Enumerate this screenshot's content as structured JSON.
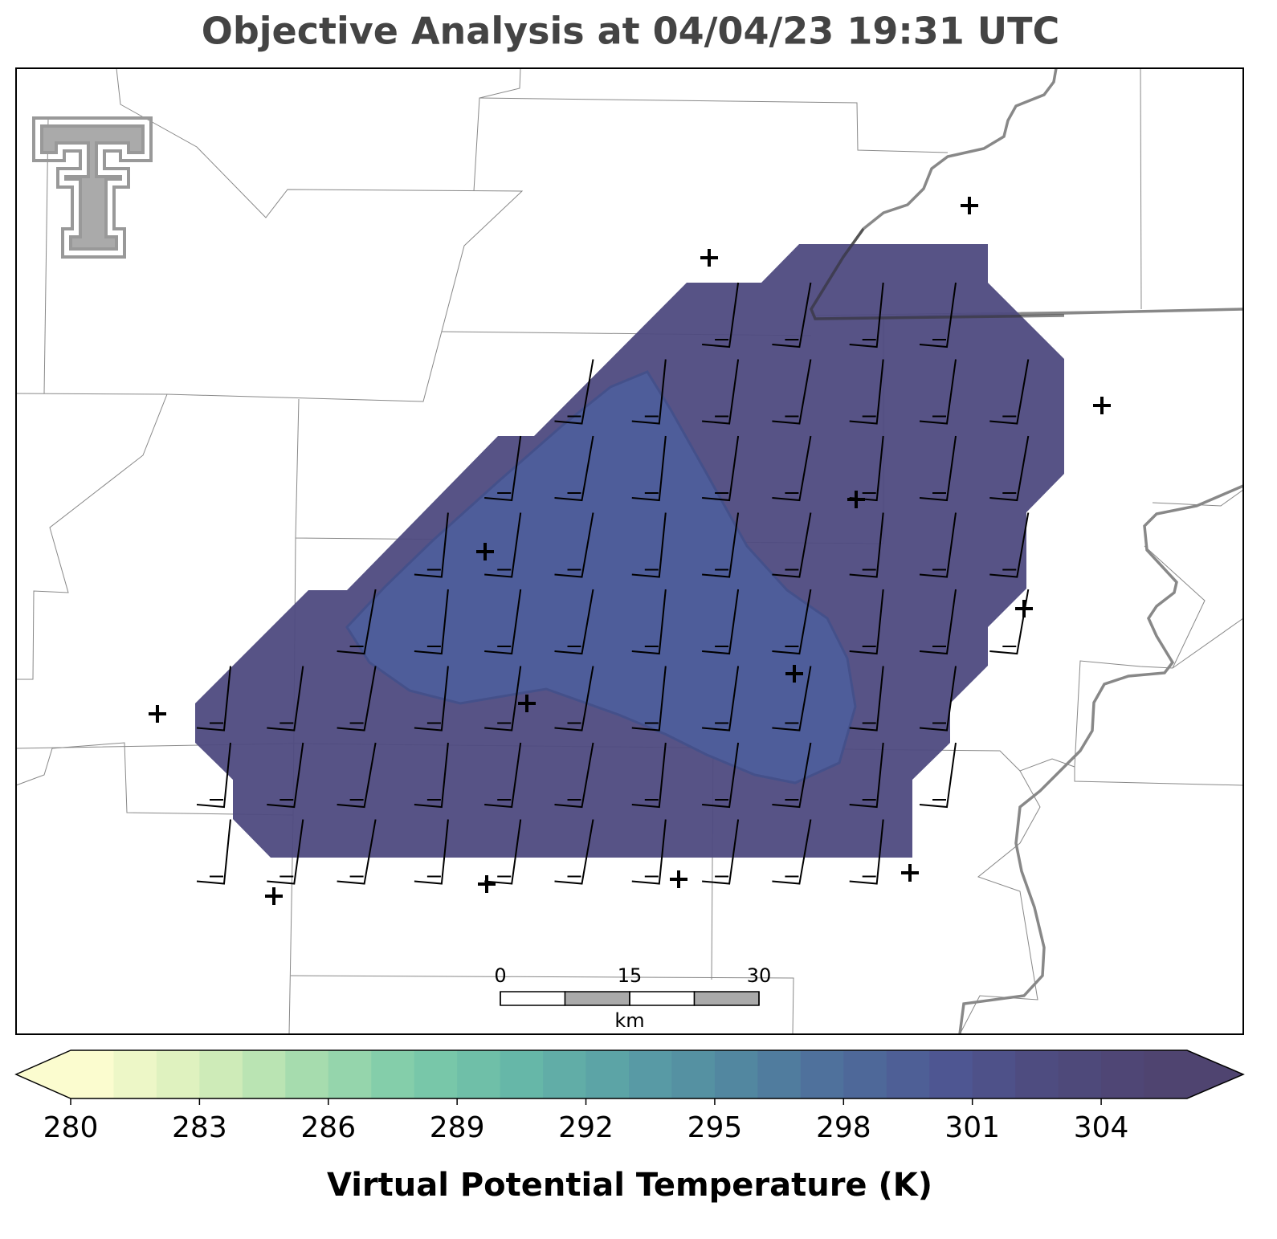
{
  "title": "Objective Analysis at 04/04/23 19:31 UTC",
  "colorbar": {
    "label": "Virtual Potential Temperature (K)",
    "range": [
      280,
      306
    ],
    "ticks": [
      280,
      283,
      286,
      289,
      292,
      295,
      298,
      301,
      304
    ],
    "colors": [
      "#fbfccf",
      "#d8efbb",
      "#a6dcae",
      "#7ccba9",
      "#66b7a8",
      "#5a9fa6",
      "#5287a0",
      "#4e6c9b",
      "#4e5692",
      "#4e4a7c",
      "#4f4470"
    ],
    "extend": "both"
  },
  "scale_bar": {
    "ticks": [
      0,
      15,
      30
    ],
    "unit": "km"
  }
}
